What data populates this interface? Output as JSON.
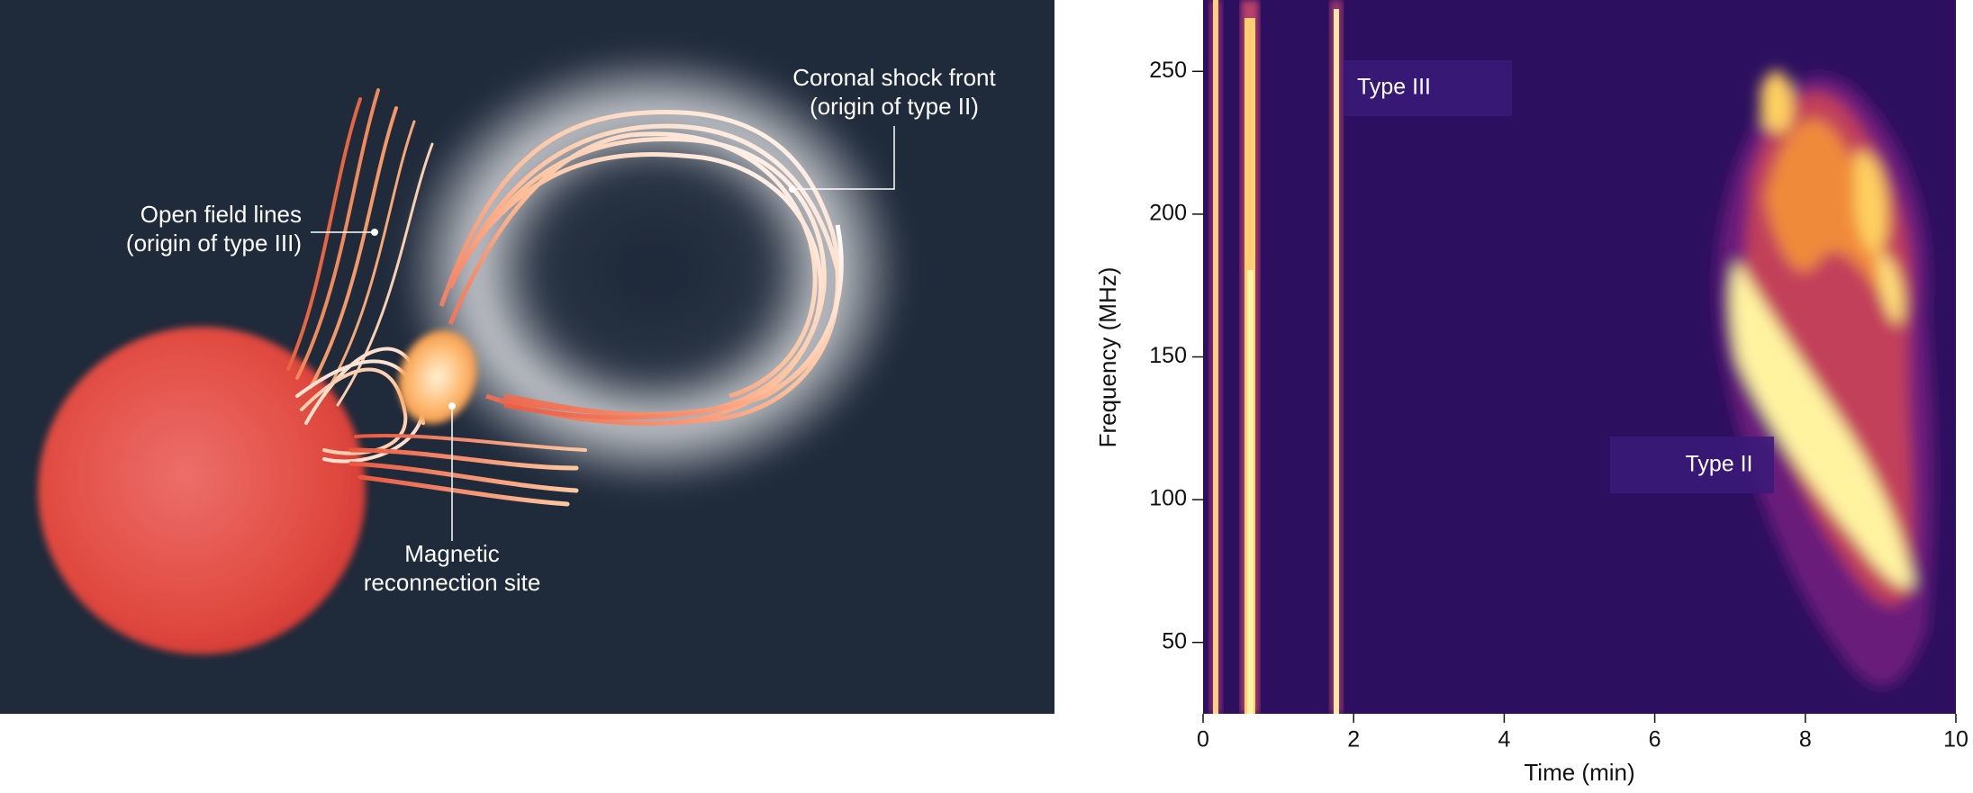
{
  "diagram": {
    "open_field_lines": [
      "Open field lines",
      "(origin of type III)"
    ],
    "coronal_shock_front": [
      "Coronal shock front",
      "(origin  of type II)"
    ],
    "magnetic_reconnection_site": [
      "Magnetic",
      "reconnection site"
    ]
  },
  "chart_data": {
    "type": "spectrogram",
    "x_label": "Time (min)",
    "y_label": "Frequency (MHz)",
    "xlim": [
      0,
      10
    ],
    "ylim": [
      25,
      275
    ],
    "xticks": [
      0,
      2,
      4,
      6,
      8,
      10
    ],
    "yticks": [
      50,
      100,
      150,
      200,
      250
    ],
    "annotations": [
      "Type III",
      "Type II"
    ]
  }
}
